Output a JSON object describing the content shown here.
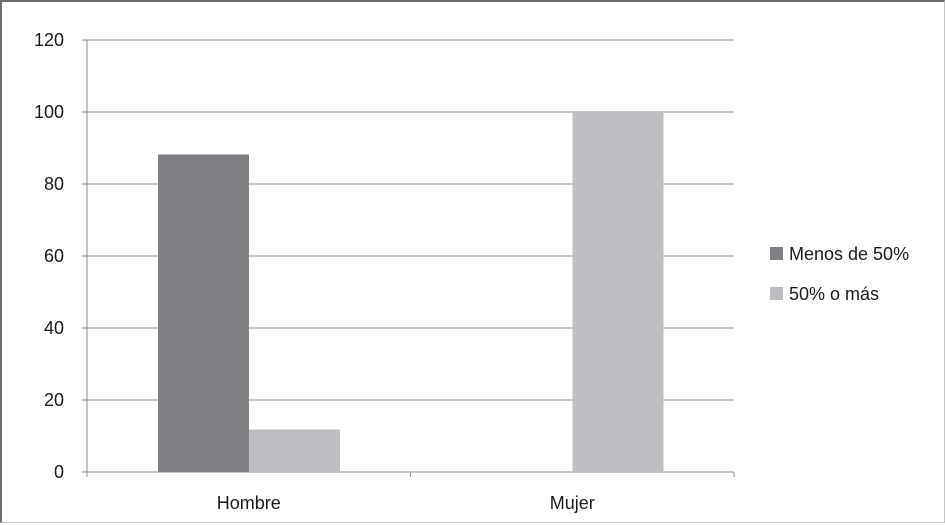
{
  "chart_data": {
    "type": "bar",
    "categories": [
      "Hombre",
      "Mujer"
    ],
    "series": [
      {
        "name": "Menos de 50%",
        "values": [
          88.2,
          0
        ],
        "color": "#7f7f83"
      },
      {
        "name": "50% o más",
        "values": [
          11.8,
          100
        ],
        "color": "#bcbdc0"
      }
    ],
    "ylim": [
      0,
      120
    ],
    "yticks": [
      0,
      20,
      40,
      60,
      80,
      100,
      120
    ],
    "ytick_labels": [
      "0",
      "20",
      "40",
      "60",
      "80",
      "100",
      "120"
    ],
    "grid": true,
    "legend_position": "right",
    "title": "",
    "xlabel": "",
    "ylabel": ""
  }
}
